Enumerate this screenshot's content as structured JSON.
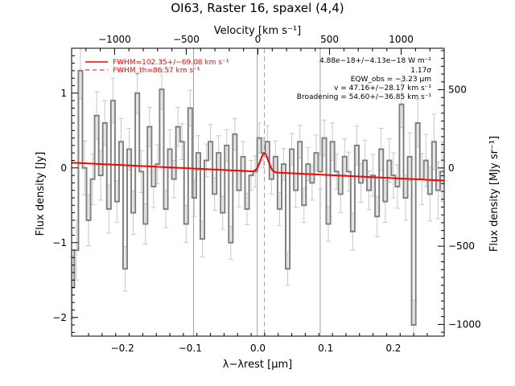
{
  "title": "OI63, Raster 16, spaxel (4,4)",
  "chart_data": {
    "type": "line",
    "title": "OI63, Raster 16, spaxel (4,4)",
    "xlabel": "λ−λrest [μm]",
    "ylabel": "Flux density [Jy]",
    "top_xlabel": "Velocity [km s⁻¹]",
    "right_ylabel": "Flux density [MJy sr⁻¹]",
    "xlim": [
      -0.275,
      0.275
    ],
    "ylim": [
      -2.25,
      1.6
    ],
    "top_xlim": [
      -1300,
      1300
    ],
    "right_ylim": [
      -1075,
      765
    ],
    "x_ticks": [
      -0.2,
      -0.1,
      0.0,
      0.1,
      0.2
    ],
    "x_tick_labels": [
      "−0.2",
      "−0.1",
      "0.0",
      "0.1",
      "0.2"
    ],
    "y_ticks": [
      1,
      0,
      -1,
      -2
    ],
    "y_tick_labels": [
      "1",
      "0",
      "−1",
      "−2"
    ],
    "top_ticks": [
      -1000,
      -500,
      0,
      500,
      1000
    ],
    "top_tick_labels": [
      "−1000",
      "−500",
      "0",
      "500",
      "1000"
    ],
    "right_ticks": [
      500,
      0,
      -500,
      -1000
    ],
    "right_tick_labels": [
      "500",
      "0",
      "−500",
      "−1000"
    ],
    "vlines_solid": [
      -0.095,
      -0.001,
      0.092
    ],
    "vline_dashed": 0.0095,
    "legend": {
      "placement": "top-left",
      "entries": [
        {
          "label": "FWHM=102.35+/−69.08 km s⁻¹",
          "style": "solid"
        },
        {
          "label": "FWHM_th=86.57 km s⁻¹",
          "style": "dashed"
        }
      ]
    },
    "annotations": [
      "4.88e−18+/−4.13e−18 W m⁻²",
      "1.17σ",
      "EQW_obs = −3.23 μm",
      "v = 47.16+/−28.17 km s⁻¹",
      "Broadening = 54.60+/−36.85 km s⁻¹"
    ],
    "fit": {
      "baseline_left": 0.07,
      "baseline_right": -0.17,
      "gaussian_center": 0.0095,
      "gaussian_amplitude": 0.25,
      "gaussian_sigma": 0.0058,
      "color": "#ff0000"
    },
    "spectrum": {
      "color": "#808080",
      "x": [
        -0.274,
        -0.268,
        -0.262,
        -0.256,
        -0.25,
        -0.244,
        -0.238,
        -0.232,
        -0.226,
        -0.22,
        -0.214,
        -0.208,
        -0.202,
        -0.196,
        -0.19,
        -0.184,
        -0.178,
        -0.172,
        -0.166,
        -0.16,
        -0.154,
        -0.148,
        -0.142,
        -0.136,
        -0.13,
        -0.124,
        -0.118,
        -0.112,
        -0.106,
        -0.1,
        -0.094,
        -0.088,
        -0.082,
        -0.076,
        -0.07,
        -0.064,
        -0.058,
        -0.052,
        -0.046,
        -0.04,
        -0.034,
        -0.028,
        -0.022,
        -0.016,
        -0.01,
        -0.004,
        0.002,
        0.008,
        0.014,
        0.02,
        0.026,
        0.032,
        0.038,
        0.044,
        0.05,
        0.056,
        0.062,
        0.068,
        0.074,
        0.08,
        0.086,
        0.092,
        0.098,
        0.104,
        0.11,
        0.116,
        0.122,
        0.128,
        0.134,
        0.14,
        0.146,
        0.152,
        0.158,
        0.164,
        0.17,
        0.176,
        0.182,
        0.188,
        0.194,
        0.2,
        0.206,
        0.212,
        0.218,
        0.224,
        0.23,
        0.236,
        0.242,
        0.248,
        0.254,
        0.26,
        0.266,
        0.272
      ],
      "y": [
        -1.6,
        -1.1,
        1.3,
        0.0,
        -0.7,
        -0.15,
        0.7,
        -0.1,
        0.6,
        -0.55,
        0.9,
        -0.45,
        0.35,
        -1.35,
        0.25,
        -0.6,
        1.0,
        -0.05,
        -0.75,
        0.55,
        -0.25,
        0.05,
        1.05,
        -0.55,
        0.25,
        -0.15,
        0.55,
        0.35,
        -0.75,
        0.8,
        -0.4,
        0.2,
        -0.95,
        0.1,
        0.35,
        -0.35,
        0.2,
        -0.6,
        0.3,
        -1.0,
        0.45,
        -0.3,
        0.15,
        -0.55,
        -0.1,
        -0.05,
        0.4,
        0.2,
        0.35,
        -0.15,
        0.15,
        -0.55,
        0.05,
        -1.35,
        0.25,
        -0.3,
        0.35,
        -0.5,
        0.05,
        -0.2,
        0.2,
        -0.05,
        0.4,
        -0.75,
        0.35,
        -0.05,
        -0.35,
        0.15,
        -0.05,
        -0.85,
        0.3,
        -0.2,
        0.1,
        -0.3,
        -0.1,
        -0.65,
        0.25,
        -0.45,
        0.1,
        -0.1,
        -0.25,
        0.85,
        -0.4,
        0.15,
        -2.1,
        0.6,
        -0.15,
        0.1,
        -0.35,
        0.35,
        -0.3,
        -0.05
      ],
      "err": [
        0.42,
        0.4,
        0.38,
        0.36,
        0.34,
        0.34,
        0.32,
        0.33,
        0.3,
        0.32,
        0.3,
        0.28,
        0.31,
        0.3,
        0.28,
        0.29,
        0.27,
        0.28,
        0.27,
        0.26,
        0.28,
        0.26,
        0.27,
        0.25,
        0.26,
        0.25,
        0.26,
        0.24,
        0.25,
        0.24,
        0.25,
        0.23,
        0.24,
        0.22,
        0.23,
        0.22,
        0.23,
        0.22,
        0.21,
        0.22,
        0.21,
        0.22,
        0.2,
        0.21,
        0.2,
        0.21,
        0.2,
        0.2,
        0.21,
        0.2,
        0.21,
        0.22,
        0.21,
        0.22,
        0.21,
        0.23,
        0.22,
        0.23,
        0.22,
        0.23,
        0.24,
        0.23,
        0.24,
        0.23,
        0.25,
        0.24,
        0.25,
        0.24,
        0.26,
        0.25,
        0.26,
        0.26,
        0.27,
        0.26,
        0.28,
        0.27,
        0.28,
        0.28,
        0.29,
        0.3,
        0.29,
        0.31,
        0.3,
        0.32,
        0.33,
        0.32,
        0.34,
        0.35,
        0.36,
        0.37,
        0.38,
        0.4
      ]
    }
  }
}
